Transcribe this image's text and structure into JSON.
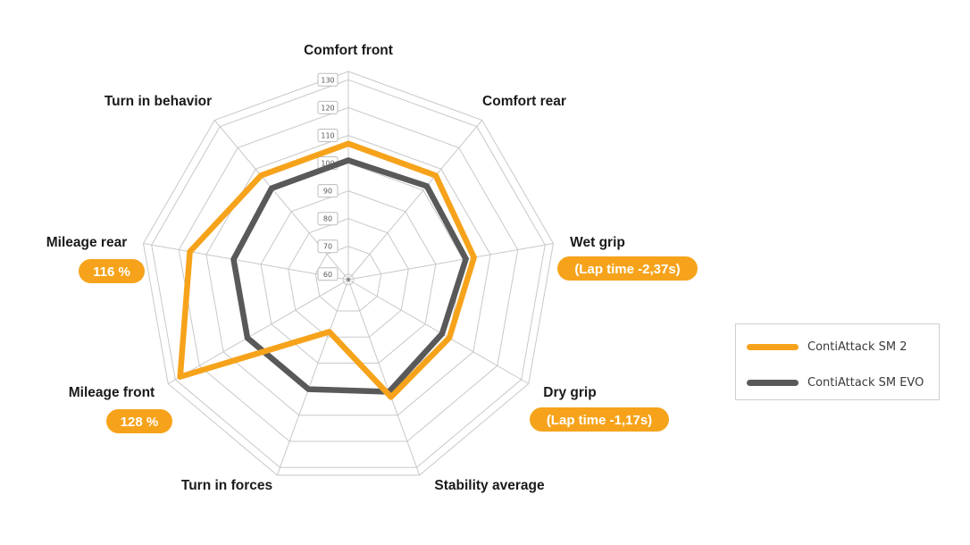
{
  "chart_data": {
    "type": "radar",
    "axes": [
      "Comfort front",
      "Comfort rear",
      "Wet grip",
      "Dry grip",
      "Stability average",
      "Turn in forces",
      "Mileage front",
      "Mileage rear",
      "Turn in behavior"
    ],
    "ticks": [
      "60",
      "70",
      "80",
      "90",
      "100",
      "110",
      "120",
      "130"
    ],
    "range": [
      58,
      133
    ],
    "grid": true,
    "legend_position": "right",
    "series": [
      {
        "name": "ContiAttack SM 2",
        "color": "#f6a31b",
        "values": [
          107,
          107,
          104,
          100,
          103,
          78,
          128,
          116,
          107
        ]
      },
      {
        "name": "ContiAttack SM EVO",
        "color": "#595959",
        "values": [
          101,
          102,
          101,
          97,
          101,
          100,
          100,
          100,
          101
        ]
      }
    ],
    "annotations": [
      {
        "axis": "Wet grip",
        "text": "(Lap time -2,37s)"
      },
      {
        "axis": "Dry grip",
        "text": "(Lap time -1,17s)"
      },
      {
        "axis": "Mileage front",
        "text": "128 %"
      },
      {
        "axis": "Mileage rear",
        "text": "116 %"
      }
    ]
  },
  "colors": {
    "accent": "#f6a31b",
    "evo": "#595959",
    "grid": "#c8c8c8",
    "pill": "#f6a31b"
  }
}
